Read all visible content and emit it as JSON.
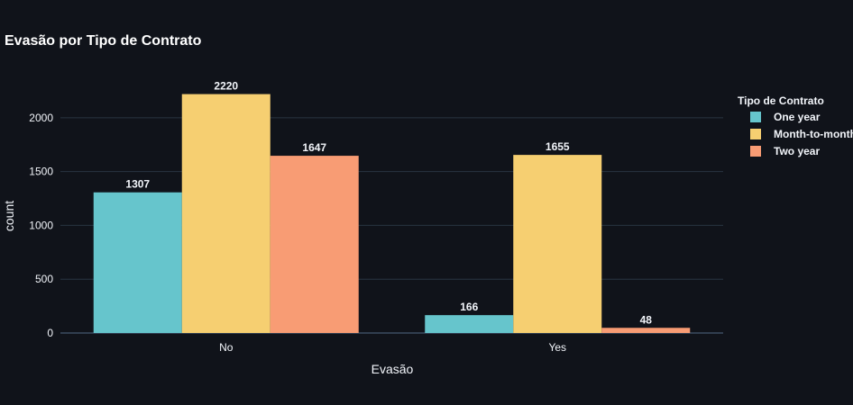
{
  "chart_data": {
    "type": "bar",
    "title": "Evasão por Tipo de Contrato",
    "xlabel": "Evasão",
    "ylabel": "count",
    "categories": [
      "No",
      "Yes"
    ],
    "legend_title": "Tipo de Contrato",
    "legend_position": "top-right",
    "ylim": [
      0,
      2300
    ],
    "yticks": [
      0,
      500,
      1000,
      1500,
      2000
    ],
    "grid": true,
    "series": [
      {
        "name": "One year",
        "color": "#66c5cc",
        "values": [
          1307,
          166
        ]
      },
      {
        "name": "Month-to-month",
        "color": "#f6cf71",
        "values": [
          2220,
          1655
        ]
      },
      {
        "name": "Two year",
        "color": "#f89c74",
        "values": [
          1647,
          48
        ]
      }
    ]
  }
}
